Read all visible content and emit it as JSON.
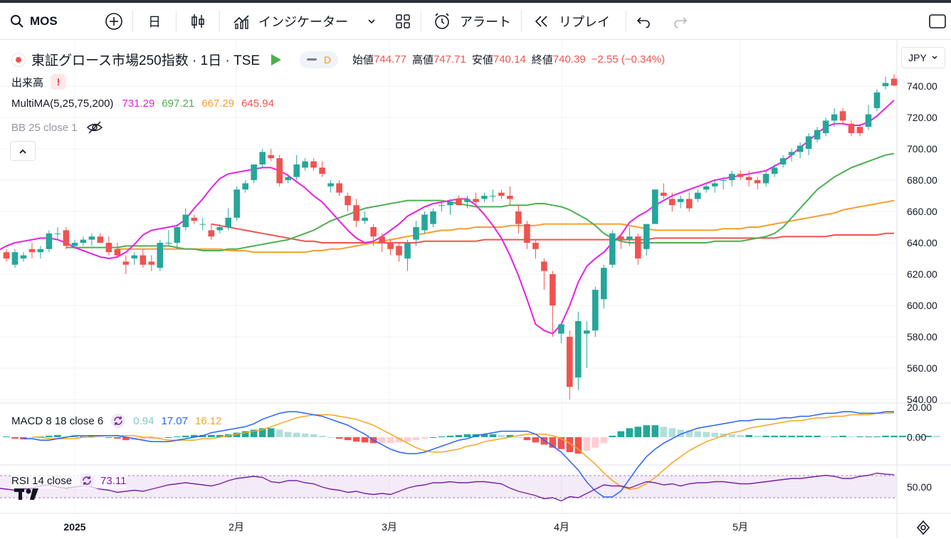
{
  "toolbar": {
    "symbol": "MOS",
    "interval": "日",
    "indicators_label": "インジケーター",
    "alert_label": "アラート",
    "replay_label": "リプレイ"
  },
  "legend": {
    "title": "東証グロース市場250指数 · 1日 · TSE",
    "d_badge": "D",
    "open_label": "始値",
    "open": "744.77",
    "high_label": "高値",
    "high": "747.71",
    "low_label": "安値",
    "low": "740.14",
    "close_label": "終値",
    "close": "740.39",
    "change": "−2.55 (−0.34%)",
    "volume_label": "出来高",
    "volume_alert": "!",
    "multima_label": "MultiMA(5,25,75,200)",
    "ma5": "731.29",
    "ma25": "697.21",
    "ma75": "667.29",
    "ma200": "645.94",
    "bb_label": "BB 25 close 1",
    "macd_label": "MACD 8 18 close 6",
    "macd_hist": "0.94",
    "macd_line": "17.07",
    "macd_signal": "16.12",
    "rsi_label": "RSI 14 close",
    "rsi_value": "73.11",
    "currency": "JPY"
  },
  "colors": {
    "up": "#26a69a",
    "down": "#ef5350",
    "ma5": "#e91ee6",
    "ma25": "#4caf50",
    "ma75": "#f89d2c",
    "ma200": "#ef5350",
    "macd_line": "#2962ff",
    "macd_signal": "#f5a623",
    "rsi": "#7b1fa2"
  },
  "chart_data": {
    "type": "candlestick",
    "price_axis_ticks": [
      "740.00",
      "720.00",
      "700.00",
      "680.00",
      "660.00",
      "640.00",
      "620.00",
      "600.00",
      "580.00",
      "560.00",
      "540.00"
    ],
    "macd_axis_ticks": [
      "20.00",
      "0.00"
    ],
    "rsi_axis_ticks": [
      "50.00"
    ],
    "time_axis_labels": [
      "2025",
      "2月",
      "3月",
      "4月",
      "5月"
    ],
    "candles": [
      {
        "o": 634,
        "h": 636,
        "l": 628,
        "c": 630
      },
      {
        "o": 626,
        "h": 636,
        "l": 624,
        "c": 634
      },
      {
        "o": 630,
        "h": 634,
        "l": 628,
        "c": 632
      },
      {
        "o": 636,
        "h": 640,
        "l": 630,
        "c": 634
      },
      {
        "o": 634,
        "h": 638,
        "l": 630,
        "c": 636
      },
      {
        "o": 636,
        "h": 648,
        "l": 634,
        "c": 646
      },
      {
        "o": 646,
        "h": 650,
        "l": 642,
        "c": 646
      },
      {
        "o": 648,
        "h": 650,
        "l": 636,
        "c": 638
      },
      {
        "o": 638,
        "h": 642,
        "l": 636,
        "c": 640
      },
      {
        "o": 640,
        "h": 644,
        "l": 638,
        "c": 642
      },
      {
        "o": 642,
        "h": 646,
        "l": 638,
        "c": 644
      },
      {
        "o": 644,
        "h": 646,
        "l": 640,
        "c": 640
      },
      {
        "o": 640,
        "h": 644,
        "l": 632,
        "c": 634
      },
      {
        "o": 636,
        "h": 640,
        "l": 630,
        "c": 632
      },
      {
        "o": 628,
        "h": 632,
        "l": 620,
        "c": 626
      },
      {
        "o": 630,
        "h": 634,
        "l": 626,
        "c": 632
      },
      {
        "o": 632,
        "h": 636,
        "l": 624,
        "c": 626
      },
      {
        "o": 628,
        "h": 632,
        "l": 622,
        "c": 626
      },
      {
        "o": 624,
        "h": 642,
        "l": 622,
        "c": 640
      },
      {
        "o": 640,
        "h": 648,
        "l": 638,
        "c": 640
      },
      {
        "o": 640,
        "h": 652,
        "l": 636,
        "c": 650
      },
      {
        "o": 650,
        "h": 662,
        "l": 648,
        "c": 658
      },
      {
        "o": 656,
        "h": 658,
        "l": 652,
        "c": 654
      },
      {
        "o": 652,
        "h": 656,
        "l": 648,
        "c": 652
      },
      {
        "o": 648,
        "h": 652,
        "l": 642,
        "c": 644
      },
      {
        "o": 648,
        "h": 652,
        "l": 646,
        "c": 650
      },
      {
        "o": 650,
        "h": 662,
        "l": 648,
        "c": 656
      },
      {
        "o": 656,
        "h": 676,
        "l": 654,
        "c": 674
      },
      {
        "o": 674,
        "h": 680,
        "l": 672,
        "c": 678
      },
      {
        "o": 680,
        "h": 690,
        "l": 678,
        "c": 690
      },
      {
        "o": 690,
        "h": 700,
        "l": 688,
        "c": 698
      },
      {
        "o": 696,
        "h": 700,
        "l": 692,
        "c": 694
      },
      {
        "o": 694,
        "h": 696,
        "l": 676,
        "c": 678
      },
      {
        "o": 680,
        "h": 684,
        "l": 678,
        "c": 682
      },
      {
        "o": 682,
        "h": 696,
        "l": 680,
        "c": 690
      },
      {
        "o": 688,
        "h": 694,
        "l": 686,
        "c": 692
      },
      {
        "o": 692,
        "h": 694,
        "l": 686,
        "c": 688
      },
      {
        "o": 688,
        "h": 692,
        "l": 682,
        "c": 684
      },
      {
        "o": 676,
        "h": 680,
        "l": 672,
        "c": 678
      },
      {
        "o": 678,
        "h": 680,
        "l": 670,
        "c": 672
      },
      {
        "o": 670,
        "h": 672,
        "l": 660,
        "c": 664
      },
      {
        "o": 664,
        "h": 668,
        "l": 650,
        "c": 654
      },
      {
        "o": 654,
        "h": 660,
        "l": 652,
        "c": 656
      },
      {
        "o": 650,
        "h": 652,
        "l": 638,
        "c": 644
      },
      {
        "o": 644,
        "h": 646,
        "l": 634,
        "c": 640
      },
      {
        "o": 640,
        "h": 642,
        "l": 632,
        "c": 636
      },
      {
        "o": 638,
        "h": 640,
        "l": 628,
        "c": 632
      },
      {
        "o": 630,
        "h": 642,
        "l": 622,
        "c": 640
      },
      {
        "o": 642,
        "h": 654,
        "l": 638,
        "c": 650
      },
      {
        "o": 648,
        "h": 660,
        "l": 646,
        "c": 658
      },
      {
        "o": 652,
        "h": 662,
        "l": 650,
        "c": 660
      },
      {
        "o": 664,
        "h": 666,
        "l": 660,
        "c": 664
      },
      {
        "o": 664,
        "h": 668,
        "l": 658,
        "c": 666
      },
      {
        "o": 668,
        "h": 670,
        "l": 664,
        "c": 664
      },
      {
        "o": 666,
        "h": 670,
        "l": 662,
        "c": 668
      },
      {
        "o": 668,
        "h": 672,
        "l": 664,
        "c": 666
      },
      {
        "o": 668,
        "h": 672,
        "l": 666,
        "c": 670
      },
      {
        "o": 670,
        "h": 674,
        "l": 666,
        "c": 670
      },
      {
        "o": 672,
        "h": 674,
        "l": 668,
        "c": 670
      },
      {
        "o": 670,
        "h": 676,
        "l": 664,
        "c": 668
      },
      {
        "o": 660,
        "h": 664,
        "l": 646,
        "c": 652
      },
      {
        "o": 652,
        "h": 654,
        "l": 636,
        "c": 640
      },
      {
        "o": 640,
        "h": 642,
        "l": 630,
        "c": 636
      },
      {
        "o": 628,
        "h": 630,
        "l": 610,
        "c": 622
      },
      {
        "o": 620,
        "h": 622,
        "l": 580,
        "c": 600
      },
      {
        "o": 582,
        "h": 588,
        "l": 576,
        "c": 588
      },
      {
        "o": 580,
        "h": 584,
        "l": 540,
        "c": 548
      },
      {
        "o": 554,
        "h": 596,
        "l": 546,
        "c": 590
      },
      {
        "o": 582,
        "h": 590,
        "l": 560,
        "c": 584
      },
      {
        "o": 584,
        "h": 612,
        "l": 580,
        "c": 610
      },
      {
        "o": 604,
        "h": 626,
        "l": 598,
        "c": 624
      },
      {
        "o": 626,
        "h": 648,
        "l": 624,
        "c": 646
      },
      {
        "o": 644,
        "h": 646,
        "l": 636,
        "c": 642
      },
      {
        "o": 642,
        "h": 650,
        "l": 638,
        "c": 644
      },
      {
        "o": 644,
        "h": 646,
        "l": 626,
        "c": 630
      },
      {
        "o": 636,
        "h": 652,
        "l": 632,
        "c": 652
      },
      {
        "o": 652,
        "h": 674,
        "l": 652,
        "c": 674
      },
      {
        "o": 672,
        "h": 678,
        "l": 668,
        "c": 670
      },
      {
        "o": 668,
        "h": 672,
        "l": 660,
        "c": 664
      },
      {
        "o": 666,
        "h": 670,
        "l": 662,
        "c": 668
      },
      {
        "o": 668,
        "h": 672,
        "l": 660,
        "c": 662
      },
      {
        "o": 668,
        "h": 674,
        "l": 666,
        "c": 672
      },
      {
        "o": 674,
        "h": 678,
        "l": 672,
        "c": 676
      },
      {
        "o": 676,
        "h": 680,
        "l": 672,
        "c": 678
      },
      {
        "o": 680,
        "h": 682,
        "l": 674,
        "c": 680
      },
      {
        "o": 680,
        "h": 686,
        "l": 676,
        "c": 684
      },
      {
        "o": 684,
        "h": 686,
        "l": 680,
        "c": 682
      },
      {
        "o": 682,
        "h": 686,
        "l": 676,
        "c": 680
      },
      {
        "o": 680,
        "h": 682,
        "l": 674,
        "c": 678
      },
      {
        "o": 678,
        "h": 686,
        "l": 676,
        "c": 684
      },
      {
        "o": 684,
        "h": 690,
        "l": 682,
        "c": 688
      },
      {
        "o": 690,
        "h": 696,
        "l": 688,
        "c": 694
      },
      {
        "o": 696,
        "h": 700,
        "l": 692,
        "c": 698
      },
      {
        "o": 698,
        "h": 704,
        "l": 694,
        "c": 702
      },
      {
        "o": 700,
        "h": 710,
        "l": 696,
        "c": 708
      },
      {
        "o": 706,
        "h": 714,
        "l": 704,
        "c": 712
      },
      {
        "o": 710,
        "h": 720,
        "l": 708,
        "c": 718
      },
      {
        "o": 718,
        "h": 726,
        "l": 714,
        "c": 722
      },
      {
        "o": 724,
        "h": 726,
        "l": 716,
        "c": 718
      },
      {
        "o": 716,
        "h": 718,
        "l": 708,
        "c": 710
      },
      {
        "o": 714,
        "h": 716,
        "l": 708,
        "c": 710
      },
      {
        "o": 714,
        "h": 728,
        "l": 712,
        "c": 722
      },
      {
        "o": 726,
        "h": 738,
        "l": 724,
        "c": 736
      },
      {
        "o": 740,
        "h": 746,
        "l": 738,
        "c": 742
      },
      {
        "o": 744.77,
        "h": 747.71,
        "l": 740.14,
        "c": 740.39
      }
    ],
    "ma5": [
      631,
      630,
      631,
      632,
      633,
      635,
      638,
      640,
      641,
      642,
      643,
      643,
      642,
      640,
      637,
      635,
      633,
      631,
      630,
      631,
      634,
      639,
      645,
      648,
      649,
      650,
      651,
      655,
      662,
      668,
      675,
      681,
      684,
      685,
      686,
      687,
      688,
      688,
      686,
      683,
      679,
      675,
      670,
      666,
      660,
      654,
      648,
      643,
      640,
      641,
      644,
      648,
      652,
      657,
      660,
      663,
      665,
      666,
      667,
      668,
      668,
      664,
      658,
      651,
      643,
      632,
      619,
      604,
      588,
      584,
      582,
      588,
      600,
      615,
      625,
      630,
      634,
      640,
      645,
      653,
      657,
      660,
      664,
      667,
      670,
      672,
      674,
      676,
      678,
      680,
      681,
      682,
      683,
      684,
      685,
      686,
      689,
      692,
      696,
      701,
      705,
      710,
      714,
      716,
      716,
      715,
      715,
      717,
      721,
      726,
      731
    ],
    "ma25": [
      637,
      637,
      637,
      637,
      637,
      637,
      637,
      638,
      638,
      638,
      638,
      638,
      638,
      637,
      636,
      636,
      635,
      635,
      635,
      636,
      636,
      637,
      638,
      639,
      640,
      641,
      642,
      644,
      646,
      648,
      651,
      654,
      656,
      658,
      660,
      662,
      663,
      664,
      665,
      666,
      667,
      667,
      667,
      667,
      667,
      666,
      665,
      664,
      663,
      663,
      663,
      663,
      664,
      664,
      664,
      665,
      665,
      664,
      663,
      661,
      658,
      655,
      651,
      646,
      643,
      641,
      640,
      640,
      640,
      640,
      640,
      640,
      640,
      640,
      640,
      640,
      641,
      641,
      641,
      641,
      642,
      643,
      644,
      646,
      650,
      656,
      662,
      668,
      674,
      678,
      682,
      685,
      688,
      690,
      692,
      694,
      696,
      697
    ],
    "ma75": [
      636,
      636,
      636,
      636,
      636,
      636,
      636,
      636,
      636,
      636,
      636,
      636,
      636,
      635,
      635,
      635,
      634,
      634,
      634,
      634,
      634,
      634,
      634,
      635,
      635,
      636,
      636,
      637,
      638,
      639,
      640,
      641,
      642,
      643,
      644,
      645,
      646,
      647,
      648,
      648,
      649,
      649,
      650,
      650,
      650,
      650,
      651,
      651,
      651,
      651,
      652,
      652,
      652,
      652,
      652,
      652,
      652,
      652,
      652,
      652,
      651,
      650,
      649,
      648,
      648,
      648,
      648,
      648,
      648,
      648,
      648,
      649,
      649,
      649,
      650,
      650,
      651,
      652,
      653,
      654,
      655,
      656,
      657,
      658,
      659,
      661,
      662,
      663,
      664,
      665,
      666,
      667
    ],
    "ma200": [
      652,
      651,
      650,
      649,
      648,
      647,
      646,
      645,
      644,
      643,
      642,
      641,
      641,
      640,
      640,
      640,
      640,
      640,
      640,
      640,
      640,
      640,
      640,
      640,
      640,
      641,
      641,
      641,
      641,
      641,
      641,
      641,
      642,
      642,
      642,
      642,
      642,
      642,
      642,
      642,
      642,
      642,
      642,
      642,
      642,
      642,
      642,
      642,
      642,
      642,
      642,
      642,
      643,
      643,
      643,
      643,
      643,
      643,
      643,
      643,
      643,
      643,
      643,
      643,
      643,
      643,
      643,
      644,
      644,
      644,
      644,
      644,
      644,
      645,
      645,
      645,
      645,
      645,
      645,
      646,
      646
    ],
    "macd_hist": [
      0.5,
      -1,
      -1.5,
      -0.5,
      0.5,
      1,
      1.5,
      0.5,
      0.5,
      0.5,
      1,
      0.5,
      -0.5,
      -1,
      -2,
      -2,
      -1.5,
      -1.5,
      -0.5,
      0,
      0.5,
      1,
      1.5,
      1.5,
      1.5,
      1.5,
      2,
      3,
      4,
      5,
      6,
      6,
      5,
      3.5,
      3,
      2.5,
      2,
      1,
      0,
      -1,
      -2,
      -3,
      -3.5,
      -4,
      -4,
      -4,
      -3.5,
      -3,
      -2,
      -1,
      0,
      0.5,
      1,
      1.5,
      2,
      2,
      2,
      2,
      1.5,
      1.5,
      0,
      -2,
      -3.5,
      -5,
      -7,
      -8,
      -10,
      -11,
      -9,
      -7,
      -4,
      1,
      4,
      6,
      7,
      8,
      8,
      7,
      6,
      5,
      4.5,
      4,
      3.5,
      3,
      2.5,
      2,
      1.5,
      1.5,
      1,
      1,
      1,
      1,
      1,
      1,
      1,
      1,
      0.5,
      0.5,
      1,
      0.5,
      0.5,
      0.5,
      0.5,
      1,
      1,
      1,
      0.5,
      0.5,
      1,
      0.94
    ],
    "macd_line": [
      -1,
      -1,
      -2,
      -2,
      -1,
      0,
      1,
      1,
      1,
      1,
      1,
      1,
      0,
      -1,
      -2,
      -3,
      -3,
      -3,
      -2,
      -1,
      0,
      1,
      3,
      4,
      5,
      6,
      7,
      9,
      12,
      14,
      16,
      17,
      17,
      16,
      15,
      14,
      12,
      10,
      8,
      5,
      2,
      -2,
      -5,
      -8,
      -10,
      -11,
      -11,
      -10,
      -8,
      -6,
      -4,
      -2,
      -1,
      1,
      2,
      3,
      4,
      4,
      4,
      4,
      2,
      -2,
      -6,
      -10,
      -16,
      -22,
      -30,
      -36,
      -40,
      -40,
      -36,
      -28,
      -20,
      -13,
      -8,
      -4,
      -1,
      2,
      4,
      6,
      7,
      8,
      9,
      10,
      11,
      11,
      12,
      12,
      12,
      13,
      13,
      14,
      14,
      15,
      16,
      16,
      17,
      17,
      16,
      16,
      16,
      17,
      17.07
    ],
    "macd_signal": [
      0,
      0,
      -1,
      -1,
      -1,
      -1,
      0,
      0,
      1,
      1,
      1,
      1,
      1,
      0,
      0,
      -1,
      -2,
      -2,
      -2,
      -2,
      -1,
      -1,
      0,
      1,
      2,
      3,
      4,
      5,
      7,
      9,
      11,
      13,
      14,
      15,
      15,
      15,
      14,
      13,
      12,
      10,
      8,
      5,
      2,
      -1,
      -4,
      -7,
      -9,
      -10,
      -10,
      -9,
      -8,
      -6,
      -5,
      -3,
      -2,
      -1,
      0,
      1,
      2,
      2,
      2,
      1,
      -1,
      -4,
      -8,
      -13,
      -18,
      -24,
      -29,
      -33,
      -35,
      -34,
      -31,
      -27,
      -22,
      -17,
      -13,
      -9,
      -6,
      -3,
      -1,
      1,
      3,
      4,
      6,
      7,
      8,
      9,
      10,
      11,
      11,
      12,
      13,
      13,
      14,
      14,
      15,
      15,
      15,
      16,
      16,
      16.12
    ],
    "rsi": [
      48,
      46,
      44,
      46,
      48,
      52,
      54,
      50,
      48,
      50,
      52,
      50,
      46,
      44,
      40,
      42,
      44,
      42,
      46,
      50,
      54,
      56,
      58,
      56,
      54,
      52,
      56,
      62,
      66,
      68,
      70,
      68,
      60,
      58,
      62,
      62,
      58,
      56,
      50,
      46,
      44,
      40,
      42,
      38,
      36,
      38,
      36,
      42,
      48,
      52,
      54,
      58,
      58,
      60,
      58,
      58,
      60,
      60,
      58,
      56,
      48,
      42,
      38,
      34,
      28,
      30,
      24,
      32,
      30,
      38,
      46,
      54,
      52,
      52,
      48,
      54,
      60,
      58,
      54,
      56,
      52,
      56,
      58,
      58,
      60,
      60,
      58,
      56,
      56,
      58,
      60,
      62,
      64,
      66,
      66,
      68,
      70,
      72,
      70,
      66,
      66,
      70,
      72,
      76,
      74,
      73.11
    ]
  }
}
